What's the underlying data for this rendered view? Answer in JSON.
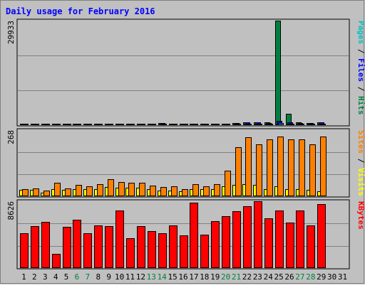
{
  "chart_data": {
    "type": "bar",
    "title": "Daily usage for February 2016",
    "categories": [
      "1",
      "2",
      "3",
      "4",
      "5",
      "6",
      "7",
      "8",
      "9",
      "10",
      "11",
      "12",
      "13",
      "14",
      "15",
      "16",
      "17",
      "18",
      "19",
      "20",
      "21",
      "22",
      "23",
      "24",
      "25",
      "26",
      "27",
      "28",
      "29",
      "30",
      "31"
    ],
    "weekend_days": [
      "6",
      "7",
      "13",
      "14",
      "20",
      "21",
      "27",
      "28"
    ],
    "panels": [
      {
        "id": "hits",
        "ymax_label": "29933",
        "ylim": [
          0,
          29933
        ],
        "axis_label_parts": [
          {
            "text": "Pages",
            "color": "#00C0C0"
          },
          {
            "text": " / ",
            "color": "#000000"
          },
          {
            "text": "Files",
            "color": "#0000FF"
          },
          {
            "text": " / ",
            "color": "#000000"
          },
          {
            "text": "Hits",
            "color": "#008040"
          }
        ],
        "series": [
          {
            "name": "Hits",
            "color": "#008040",
            "values": [
              300,
              300,
              300,
              300,
              300,
              300,
              300,
              300,
              400,
              300,
              400,
              400,
              450,
              700,
              300,
              300,
              450,
              300,
              400,
              500,
              700,
              900,
              850,
              800,
              29933,
              3300,
              800,
              700,
              850,
              0,
              0
            ]
          },
          {
            "name": "Files",
            "color": "#0000FF",
            "values": [
              200,
              200,
              200,
              200,
              200,
              200,
              200,
              200,
              300,
              200,
              300,
              300,
              350,
              550,
              200,
              200,
              350,
              200,
              300,
              400,
              550,
              800,
              750,
              700,
              1200,
              800,
              700,
              600,
              750,
              0,
              0
            ]
          },
          {
            "name": "Pages",
            "color": "#00C0C0",
            "values": [
              100,
              100,
              100,
              100,
              100,
              100,
              100,
              100,
              150,
              100,
              150,
              150,
              200,
              300,
              100,
              100,
              200,
              100,
              150,
              250,
              400,
              500,
              450,
              450,
              600,
              500,
              450,
              400,
              450,
              0,
              0
            ]
          }
        ]
      },
      {
        "id": "visits",
        "ymax_label": "268",
        "ylim": [
          0,
          268
        ],
        "axis_label_parts": [
          {
            "text": "Sites",
            "color": "#FF8000"
          },
          {
            "text": " / ",
            "color": "#000000"
          },
          {
            "text": "Visits",
            "color": "#FFFF00"
          }
        ],
        "series": [
          {
            "name": "Visits",
            "color": "#FFFF00",
            "values": [
              25,
              25,
              15,
              30,
              25,
              30,
              28,
              30,
              38,
              34,
              34,
              34,
              30,
              23,
              23,
              20,
              30,
              28,
              30,
              40,
              45,
              50,
              45,
              30,
              40,
              30,
              30,
              25,
              20,
              0,
              0
            ]
          },
          {
            "name": "Sites",
            "color": "#FF8000",
            "values": [
              28,
              33,
              23,
              55,
              33,
              45,
              40,
              50,
              70,
              57,
              55,
              55,
              43,
              37,
              40,
              30,
              50,
              40,
              50,
              105,
              200,
              240,
              210,
              230,
              243,
              230,
              230,
              210,
              243,
              0,
              0
            ]
          }
        ]
      },
      {
        "id": "kbytes",
        "ymax_label": "8626",
        "ylim": [
          0,
          8626
        ],
        "axis_label_parts": [
          {
            "text": "KBytes",
            "color": "#FF0000"
          }
        ],
        "series": [
          {
            "name": "KBytes",
            "color": "#FF0000",
            "values": [
              4500,
              5400,
              6000,
              1800,
              5300,
              6200,
              4500,
              5500,
              5400,
              7400,
              3900,
              5400,
              4800,
              4500,
              5500,
              4200,
              8400,
              4300,
              6100,
              6700,
              7300,
              8000,
              8626,
              6400,
              7400,
              5900,
              7400,
              5500,
              8300,
              0,
              0
            ]
          }
        ]
      }
    ],
    "colors": {
      "background": "#C0C0C0",
      "grid": "#808080",
      "axis": "#000000",
      "title": "#0000FF",
      "day_label": "#000000",
      "weekend_label": "#008040"
    }
  }
}
